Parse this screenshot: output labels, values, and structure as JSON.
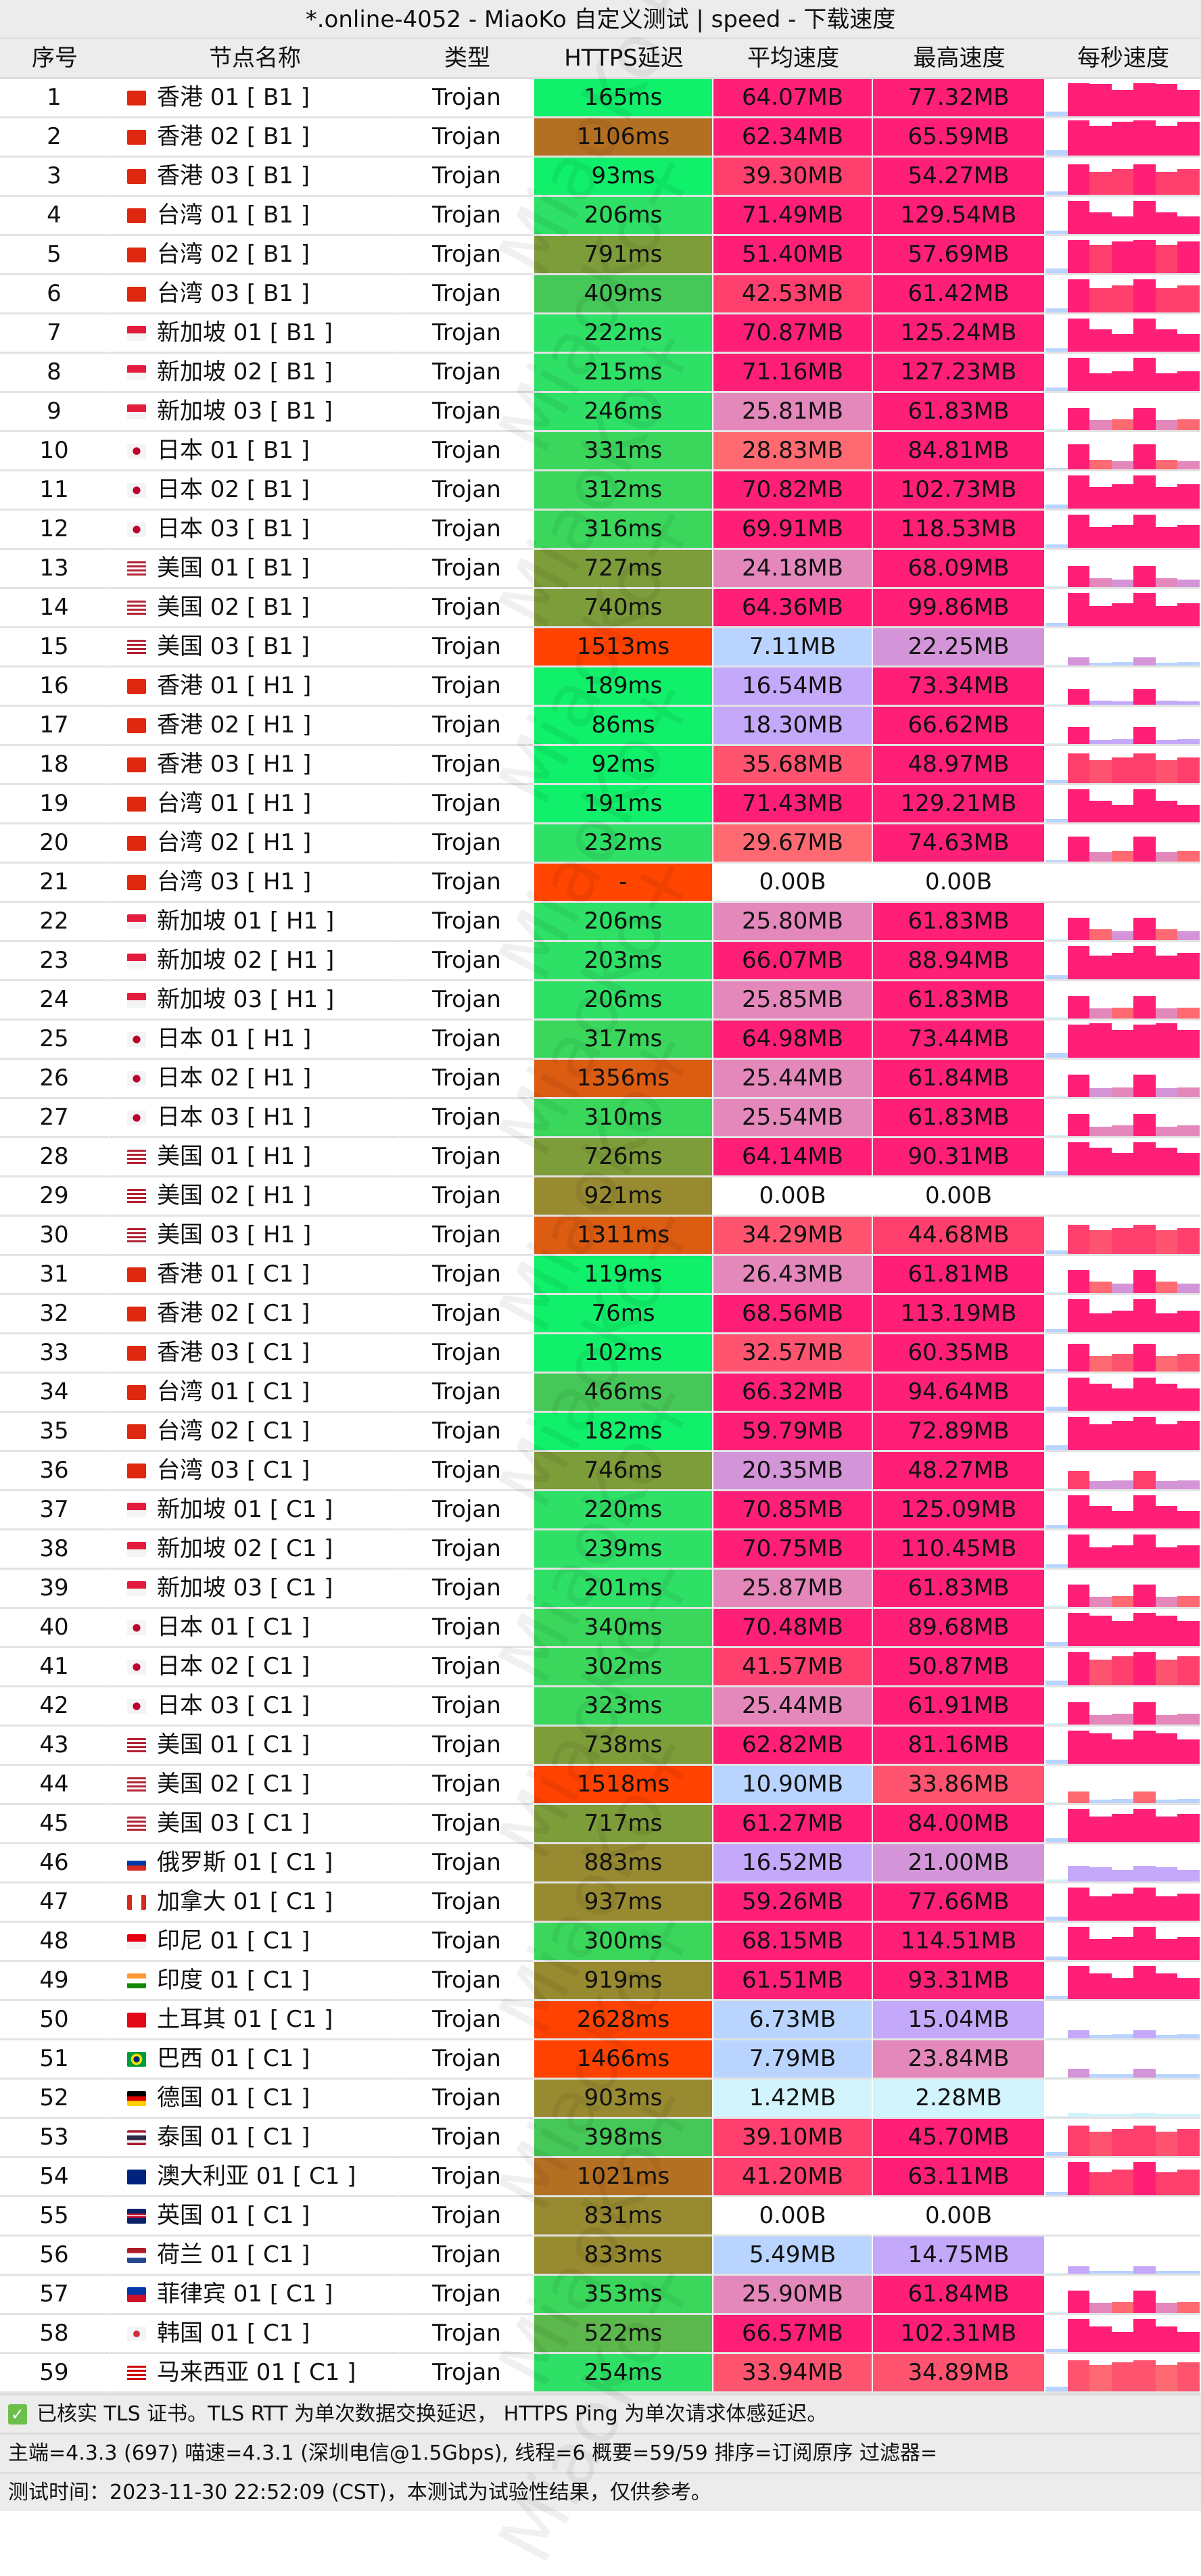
{
  "title": "*.online-4052 - MiaoKo 自定义测试 | speed - 下载速度",
  "watermark": "MiaoKo+",
  "headers": [
    "序号",
    "节点名称",
    "类型",
    "HTTPS延迟",
    "平均速度",
    "最高速度",
    "每秒速度"
  ],
  "rows": [
    [
      "1",
      "hk",
      "香港 01 [ B1 ]",
      "Trojan",
      "165ms",
      "64.07MB",
      "77.32MB"
    ],
    [
      "2",
      "hk",
      "香港 02 [ B1 ]",
      "Trojan",
      "1106ms",
      "62.34MB",
      "65.59MB"
    ],
    [
      "3",
      "hk",
      "香港 03 [ B1 ]",
      "Trojan",
      "93ms",
      "39.30MB",
      "54.27MB"
    ],
    [
      "4",
      "tw",
      "台湾 01 [ B1 ]",
      "Trojan",
      "206ms",
      "71.49MB",
      "129.54MB"
    ],
    [
      "5",
      "tw",
      "台湾 02 [ B1 ]",
      "Trojan",
      "791ms",
      "51.40MB",
      "57.69MB"
    ],
    [
      "6",
      "tw",
      "台湾 03 [ B1 ]",
      "Trojan",
      "409ms",
      "42.53MB",
      "61.42MB"
    ],
    [
      "7",
      "sg",
      "新加坡 01 [ B1 ]",
      "Trojan",
      "222ms",
      "70.87MB",
      "125.24MB"
    ],
    [
      "8",
      "sg",
      "新加坡 02 [ B1 ]",
      "Trojan",
      "215ms",
      "71.16MB",
      "127.23MB"
    ],
    [
      "9",
      "sg",
      "新加坡 03 [ B1 ]",
      "Trojan",
      "246ms",
      "25.81MB",
      "61.83MB"
    ],
    [
      "10",
      "jp",
      "日本 01 [ B1 ]",
      "Trojan",
      "331ms",
      "28.83MB",
      "84.81MB"
    ],
    [
      "11",
      "jp",
      "日本 02 [ B1 ]",
      "Trojan",
      "312ms",
      "70.82MB",
      "102.73MB"
    ],
    [
      "12",
      "jp",
      "日本 03 [ B1 ]",
      "Trojan",
      "316ms",
      "69.91MB",
      "118.53MB"
    ],
    [
      "13",
      "us",
      "美国 01 [ B1 ]",
      "Trojan",
      "727ms",
      "24.18MB",
      "68.09MB"
    ],
    [
      "14",
      "us",
      "美国 02 [ B1 ]",
      "Trojan",
      "740ms",
      "64.36MB",
      "99.86MB"
    ],
    [
      "15",
      "us",
      "美国 03 [ B1 ]",
      "Trojan",
      "1513ms",
      "7.11MB",
      "22.25MB"
    ],
    [
      "16",
      "hk",
      "香港 01 [ H1 ]",
      "Trojan",
      "189ms",
      "16.54MB",
      "73.34MB"
    ],
    [
      "17",
      "hk",
      "香港 02 [ H1 ]",
      "Trojan",
      "86ms",
      "18.30MB",
      "66.62MB"
    ],
    [
      "18",
      "hk",
      "香港 03 [ H1 ]",
      "Trojan",
      "92ms",
      "35.68MB",
      "48.97MB"
    ],
    [
      "19",
      "tw",
      "台湾 01 [ H1 ]",
      "Trojan",
      "191ms",
      "71.43MB",
      "129.21MB"
    ],
    [
      "20",
      "tw",
      "台湾 02 [ H1 ]",
      "Trojan",
      "232ms",
      "29.67MB",
      "74.63MB"
    ],
    [
      "21",
      "tw",
      "台湾 03 [ H1 ]",
      "Trojan",
      "-",
      "0.00B",
      "0.00B"
    ],
    [
      "22",
      "sg",
      "新加坡 01 [ H1 ]",
      "Trojan",
      "206ms",
      "25.80MB",
      "61.83MB"
    ],
    [
      "23",
      "sg",
      "新加坡 02 [ H1 ]",
      "Trojan",
      "203ms",
      "66.07MB",
      "88.94MB"
    ],
    [
      "24",
      "sg",
      "新加坡 03 [ H1 ]",
      "Trojan",
      "206ms",
      "25.85MB",
      "61.83MB"
    ],
    [
      "25",
      "jp",
      "日本 01 [ H1 ]",
      "Trojan",
      "317ms",
      "64.98MB",
      "73.44MB"
    ],
    [
      "26",
      "jp",
      "日本 02 [ H1 ]",
      "Trojan",
      "1356ms",
      "25.44MB",
      "61.84MB"
    ],
    [
      "27",
      "jp",
      "日本 03 [ H1 ]",
      "Trojan",
      "310ms",
      "25.54MB",
      "61.83MB"
    ],
    [
      "28",
      "us",
      "美国 01 [ H1 ]",
      "Trojan",
      "726ms",
      "64.14MB",
      "90.31MB"
    ],
    [
      "29",
      "us",
      "美国 02 [ H1 ]",
      "Trojan",
      "921ms",
      "0.00B",
      "0.00B"
    ],
    [
      "30",
      "us",
      "美国 03 [ H1 ]",
      "Trojan",
      "1311ms",
      "34.29MB",
      "44.68MB"
    ],
    [
      "31",
      "hk",
      "香港 01 [ C1 ]",
      "Trojan",
      "119ms",
      "26.43MB",
      "61.81MB"
    ],
    [
      "32",
      "hk",
      "香港 02 [ C1 ]",
      "Trojan",
      "76ms",
      "68.56MB",
      "113.19MB"
    ],
    [
      "33",
      "hk",
      "香港 03 [ C1 ]",
      "Trojan",
      "102ms",
      "32.57MB",
      "60.35MB"
    ],
    [
      "34",
      "tw",
      "台湾 01 [ C1 ]",
      "Trojan",
      "466ms",
      "66.32MB",
      "94.64MB"
    ],
    [
      "35",
      "tw",
      "台湾 02 [ C1 ]",
      "Trojan",
      "182ms",
      "59.79MB",
      "72.89MB"
    ],
    [
      "36",
      "tw",
      "台湾 03 [ C1 ]",
      "Trojan",
      "746ms",
      "20.35MB",
      "48.27MB"
    ],
    [
      "37",
      "sg",
      "新加坡 01 [ C1 ]",
      "Trojan",
      "220ms",
      "70.85MB",
      "125.09MB"
    ],
    [
      "38",
      "sg",
      "新加坡 02 [ C1 ]",
      "Trojan",
      "239ms",
      "70.75MB",
      "110.45MB"
    ],
    [
      "39",
      "sg",
      "新加坡 03 [ C1 ]",
      "Trojan",
      "201ms",
      "25.87MB",
      "61.83MB"
    ],
    [
      "40",
      "jp",
      "日本 01 [ C1 ]",
      "Trojan",
      "340ms",
      "70.48MB",
      "89.68MB"
    ],
    [
      "41",
      "jp",
      "日本 02 [ C1 ]",
      "Trojan",
      "302ms",
      "41.57MB",
      "50.87MB"
    ],
    [
      "42",
      "jp",
      "日本 03 [ C1 ]",
      "Trojan",
      "323ms",
      "25.44MB",
      "61.91MB"
    ],
    [
      "43",
      "us",
      "美国 01 [ C1 ]",
      "Trojan",
      "738ms",
      "62.82MB",
      "81.16MB"
    ],
    [
      "44",
      "us",
      "美国 02 [ C1 ]",
      "Trojan",
      "1518ms",
      "10.90MB",
      "33.86MB"
    ],
    [
      "45",
      "us",
      "美国 03 [ C1 ]",
      "Trojan",
      "717ms",
      "61.27MB",
      "84.00MB"
    ],
    [
      "46",
      "ru",
      "俄罗斯 01 [ C1 ]",
      "Trojan",
      "883ms",
      "16.52MB",
      "21.00MB"
    ],
    [
      "47",
      "ca",
      "加拿大 01 [ C1 ]",
      "Trojan",
      "937ms",
      "59.26MB",
      "77.66MB"
    ],
    [
      "48",
      "id",
      "印尼 01 [ C1 ]",
      "Trojan",
      "300ms",
      "68.15MB",
      "114.51MB"
    ],
    [
      "49",
      "in",
      "印度 01 [ C1 ]",
      "Trojan",
      "919ms",
      "61.51MB",
      "93.31MB"
    ],
    [
      "50",
      "tr",
      "土耳其 01 [ C1 ]",
      "Trojan",
      "2628ms",
      "6.73MB",
      "15.04MB"
    ],
    [
      "51",
      "br",
      "巴西 01 [ C1 ]",
      "Trojan",
      "1466ms",
      "7.79MB",
      "23.84MB"
    ],
    [
      "52",
      "de",
      "德国 01 [ C1 ]",
      "Trojan",
      "903ms",
      "1.42MB",
      "2.28MB"
    ],
    [
      "53",
      "th",
      "泰国 01 [ C1 ]",
      "Trojan",
      "398ms",
      "39.10MB",
      "45.70MB"
    ],
    [
      "54",
      "au",
      "澳大利亚 01 [ C1 ]",
      "Trojan",
      "1021ms",
      "41.20MB",
      "63.11MB"
    ],
    [
      "55",
      "gb",
      "英国 01 [ C1 ]",
      "Trojan",
      "831ms",
      "0.00B",
      "0.00B"
    ],
    [
      "56",
      "nl",
      "荷兰 01 [ C1 ]",
      "Trojan",
      "833ms",
      "5.49MB",
      "14.75MB"
    ],
    [
      "57",
      "ph",
      "菲律宾 01 [ C1 ]",
      "Trojan",
      "353ms",
      "25.90MB",
      "61.84MB"
    ],
    [
      "58",
      "kr",
      "韩国 01 [ C1 ]",
      "Trojan",
      "522ms",
      "66.57MB",
      "102.31MB"
    ],
    [
      "59",
      "my",
      "马来西亚 01 [ C1 ]",
      "Trojan",
      "254ms",
      "33.94MB",
      "34.89MB"
    ]
  ],
  "footer": {
    "tls_note": "已核实 TLS 证书。TLS RTT 为单次数据交换延迟， HTTPS Ping 为单次请求体感延迟。",
    "info": "主端=4.3.3 (697) 喵速=4.3.1 (深圳电信@1.5Gbps), 线程=6 概要=59/59 排序=订阅原序 过滤器=",
    "time": "测试时间：2023-11-30 22:52:09 (CST)，本测试为试验性结果，仅供参考。"
  },
  "flag_styles": {
    "hk": "#de2910",
    "tw": "#de2910",
    "sg": "linear-gradient(#e31c3d 50%,#f4f4f4 50%)",
    "jp": "radial-gradient(circle,#bc002d 30%,#f4f4f4 33%)",
    "us": "repeating-linear-gradient(#b22234 0 3px,#fff 3px 6px)",
    "ru": "linear-gradient(#fff 33%,#0039a6 33% 66%,#d52b1e 66%)",
    "ca": "linear-gradient(90deg,#d52b1e 25%,#fff 25% 75%,#d52b1e 75%)",
    "id": "linear-gradient(#e70011 50%,#f4f4f4 50%)",
    "in": "linear-gradient(#ff9933 33%,#fff 33% 66%,#138808 66%)",
    "tr": "#e30a17",
    "br": "radial-gradient(circle,#002776 25%,#fedf00 27% 45%,#009c3b 48%)",
    "de": "linear-gradient(#000 33%,#dd0000 33% 66%,#ffce00 66%)",
    "th": "linear-gradient(#a51931 16%,#f4f5f8 16% 33%,#2d2a4a 33% 66%,#f4f5f8 66% 83%,#a51931 83%)",
    "au": "#00247d",
    "gb": "linear-gradient(#c8102e 40%,#fff 40% 60%,#c8102e 60%) center/100% 30% no-repeat,#012169",
    "nl": "linear-gradient(#ae1c28 33%,#fff 33% 66%,#21468b 66%)",
    "ph": "linear-gradient(#0038a8 50%,#ce1126 50%)",
    "kr": "radial-gradient(circle,#cd2e3a 25%,#f4f4f4 30%)",
    "my": "repeating-linear-gradient(#cc0001 0 3px,#fff 3px 6px)"
  }
}
